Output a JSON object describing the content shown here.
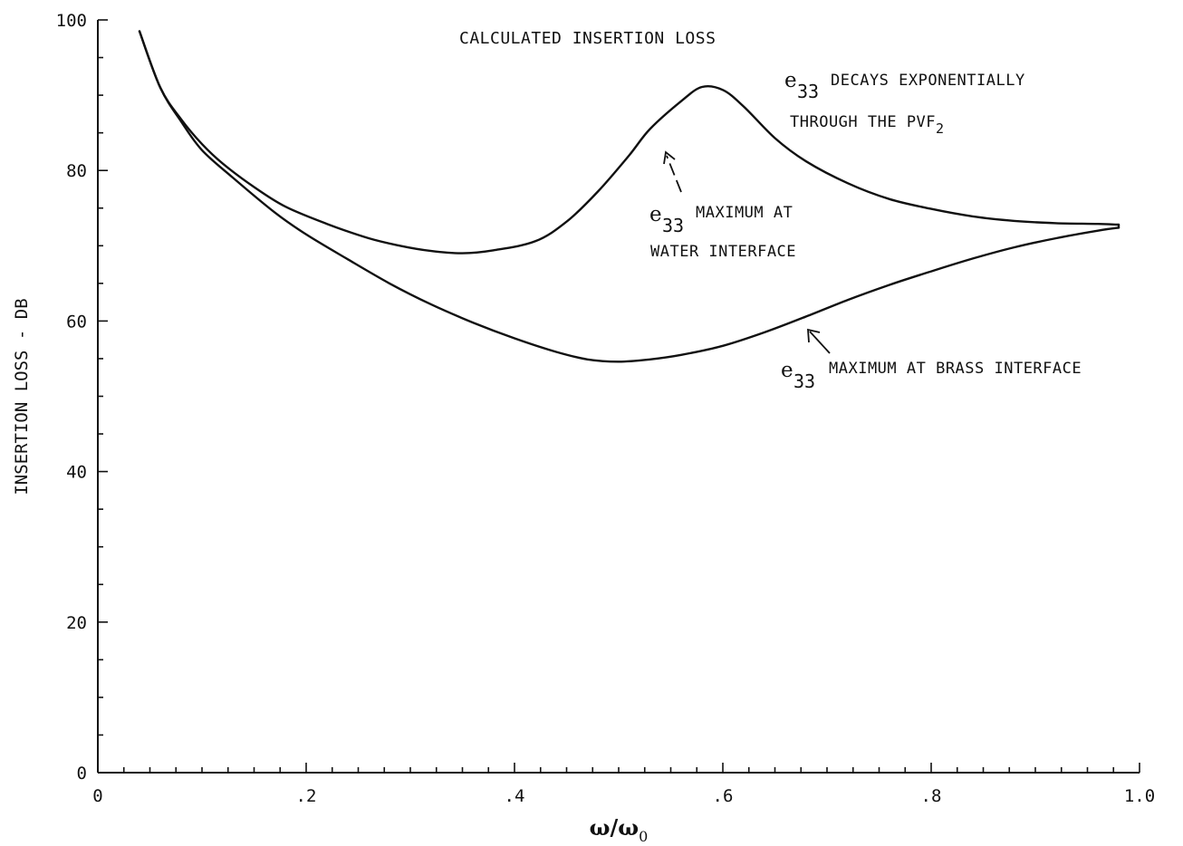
{
  "chart_data": {
    "type": "line",
    "title": "CALCULATED INSERTION LOSS",
    "ylabel": "INSERTION LOSS - DB",
    "xlabel_parts": {
      "num": "ω",
      "num_sub": "",
      "sep": "/",
      "den": "ω",
      "den_sub": "0"
    },
    "xlim": [
      0,
      1.0
    ],
    "ylim": [
      0,
      100
    ],
    "x_ticks": [
      {
        "value": 0,
        "label": "0"
      },
      {
        "value": 0.2,
        "label": ".2"
      },
      {
        "value": 0.4,
        "label": ".4"
      },
      {
        "value": 0.6,
        "label": ".6"
      },
      {
        "value": 0.8,
        "label": ".8"
      },
      {
        "value": 1.0,
        "label": "1.0"
      }
    ],
    "y_ticks": [
      {
        "value": 0,
        "label": "0"
      },
      {
        "value": 20,
        "label": "20"
      },
      {
        "value": 40,
        "label": "40"
      },
      {
        "value": 60,
        "label": "60"
      },
      {
        "value": 80,
        "label": "80"
      },
      {
        "value": 100,
        "label": "100"
      }
    ],
    "series": [
      {
        "points": [
          [
            0.04,
            98.5
          ],
          [
            0.06,
            91
          ],
          [
            0.08,
            86.8
          ],
          [
            0.1,
            83.5
          ],
          [
            0.12,
            80.9
          ],
          [
            0.15,
            77.8
          ],
          [
            0.18,
            75.2
          ],
          [
            0.22,
            72.9
          ],
          [
            0.26,
            71
          ],
          [
            0.29,
            70
          ],
          [
            0.32,
            69.3
          ],
          [
            0.35,
            69
          ],
          [
            0.38,
            69.4
          ],
          [
            0.42,
            70.6
          ],
          [
            0.45,
            73.2
          ],
          [
            0.48,
            77.2
          ],
          [
            0.51,
            82
          ],
          [
            0.53,
            85.5
          ],
          [
            0.56,
            89.2
          ],
          [
            0.58,
            91.1
          ],
          [
            0.6,
            90.7
          ],
          [
            0.62,
            88.5
          ],
          [
            0.65,
            84.3
          ],
          [
            0.68,
            81.2
          ],
          [
            0.72,
            78.3
          ],
          [
            0.76,
            76.2
          ],
          [
            0.8,
            74.9
          ],
          [
            0.84,
            73.9
          ],
          [
            0.88,
            73.3
          ],
          [
            0.92,
            73
          ],
          [
            0.96,
            72.9
          ],
          [
            0.98,
            72.8
          ]
        ]
      },
      {
        "points": [
          [
            0.04,
            98.5
          ],
          [
            0.06,
            91
          ],
          [
            0.08,
            86.5
          ],
          [
            0.1,
            82.7
          ],
          [
            0.13,
            79
          ],
          [
            0.17,
            74.4
          ],
          [
            0.2,
            71.5
          ],
          [
            0.24,
            68.2
          ],
          [
            0.28,
            65
          ],
          [
            0.32,
            62.2
          ],
          [
            0.36,
            59.8
          ],
          [
            0.4,
            57.7
          ],
          [
            0.44,
            55.9
          ],
          [
            0.47,
            54.9
          ],
          [
            0.5,
            54.6
          ],
          [
            0.53,
            54.9
          ],
          [
            0.56,
            55.5
          ],
          [
            0.6,
            56.7
          ],
          [
            0.64,
            58.5
          ],
          [
            0.68,
            60.6
          ],
          [
            0.72,
            62.8
          ],
          [
            0.76,
            64.8
          ],
          [
            0.8,
            66.6
          ],
          [
            0.84,
            68.3
          ],
          [
            0.88,
            69.8
          ],
          [
            0.92,
            71
          ],
          [
            0.96,
            72
          ],
          [
            0.98,
            72.4
          ]
        ]
      }
    ],
    "annotations": {
      "decays": {
        "sym": "e",
        "sub": "33",
        "line1": "DECAYS EXPONENTIALLY",
        "line2": "THROUGH THE PVF",
        "line2_sub": "2"
      },
      "water": {
        "sym": "e",
        "sub": "33",
        "line1": "MAXIMUM AT",
        "line2": "WATER INTERFACE"
      },
      "brass": {
        "sym": "e",
        "sub": "33",
        "line1": "MAXIMUM AT BRASS INTERFACE"
      }
    }
  }
}
